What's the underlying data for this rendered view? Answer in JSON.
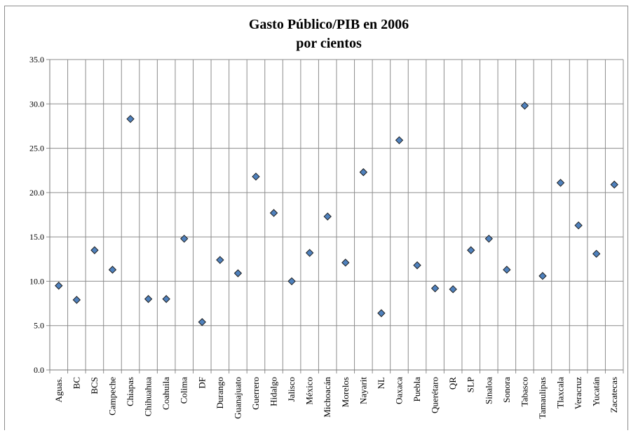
{
  "chart_data": {
    "type": "scatter",
    "title": "Gasto Público/PIB en 2006",
    "subtitle": "por cientos",
    "xlabel": "",
    "ylabel": "",
    "ylim": [
      0,
      35
    ],
    "ytick_step": 5,
    "ytick_labels": [
      "0.0",
      "5.0",
      "10.0",
      "15.0",
      "20.0",
      "25.0",
      "30.0",
      "35.0"
    ],
    "grid": true,
    "legend": "none",
    "marker": "diamond",
    "marker_color": "#4f81bd",
    "marker_edge": "#1f1f1f",
    "categories": [
      "Aguas.",
      "BC",
      "BCS",
      "Campeche",
      "Chiapas",
      "Chihuahua",
      "Coahuila",
      "Colima",
      "DF",
      "Durango",
      "Guanajuato",
      "Guerrero",
      "Hidalgo",
      "Jalisco",
      "México",
      "Michoacán",
      "Morelos",
      "Nayarit",
      "NL",
      "Oaxaca",
      "Puebla",
      "Querétaro",
      "QR",
      "SLP",
      "Sinaloa",
      "Sonora",
      "Tabasco",
      "Tamaulipas",
      "Tlaxcala",
      "Veracruz",
      "Yucatán",
      "Zacatecas"
    ],
    "values": [
      9.5,
      7.9,
      13.5,
      11.3,
      28.3,
      8.0,
      8.0,
      14.8,
      5.4,
      12.4,
      10.9,
      21.8,
      17.7,
      10.0,
      13.2,
      17.3,
      12.1,
      22.3,
      6.4,
      25.9,
      11.8,
      9.2,
      9.1,
      13.5,
      14.8,
      11.3,
      29.8,
      10.6,
      21.1,
      16.3,
      13.1,
      20.9
    ]
  }
}
